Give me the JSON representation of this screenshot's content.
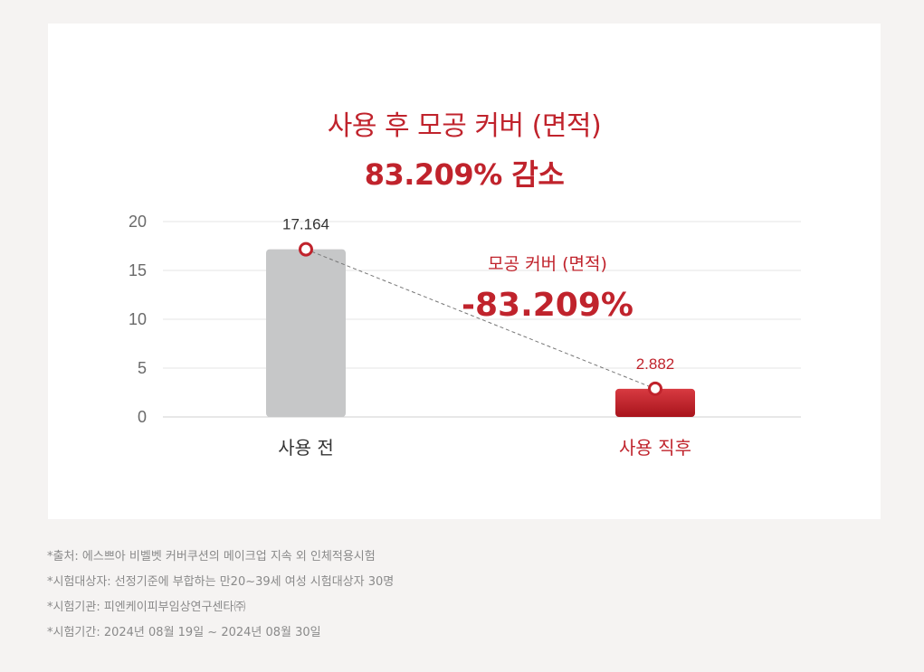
{
  "headline": "사용 후 모공 커버 (면적)",
  "subheadline": "83.209% 감소",
  "chart_data": {
    "type": "bar",
    "categories": [
      "사용 전",
      "사용 직후"
    ],
    "values": [
      17.164,
      2.882
    ],
    "value_labels": [
      "17.164",
      "2.882"
    ],
    "ylim": [
      0,
      20
    ],
    "yticks": [
      "0",
      "5",
      "10",
      "15",
      "20"
    ],
    "ytick_values": [
      0,
      5,
      10,
      15,
      20
    ],
    "grid": true,
    "colors": [
      "#c6c7c8",
      "#c0232c"
    ],
    "accent_color": "#c0232c",
    "annotation": {
      "label": "모공 커버 (면적)",
      "value": "-83.209%"
    }
  },
  "notes": [
    "*출처: 에스쁘아 비벨벳 커버쿠션의 메이크업 지속 외 인체적용시험",
    "*시험대상자: 선정기준에 부합하는 만20~39세 여성 시험대상자 30명",
    "*시험기관: 피엔케이피부임상연구센타㈜",
    "*시험기간: 2024년 08월 19일 ~ 2024년 08월 30일"
  ]
}
